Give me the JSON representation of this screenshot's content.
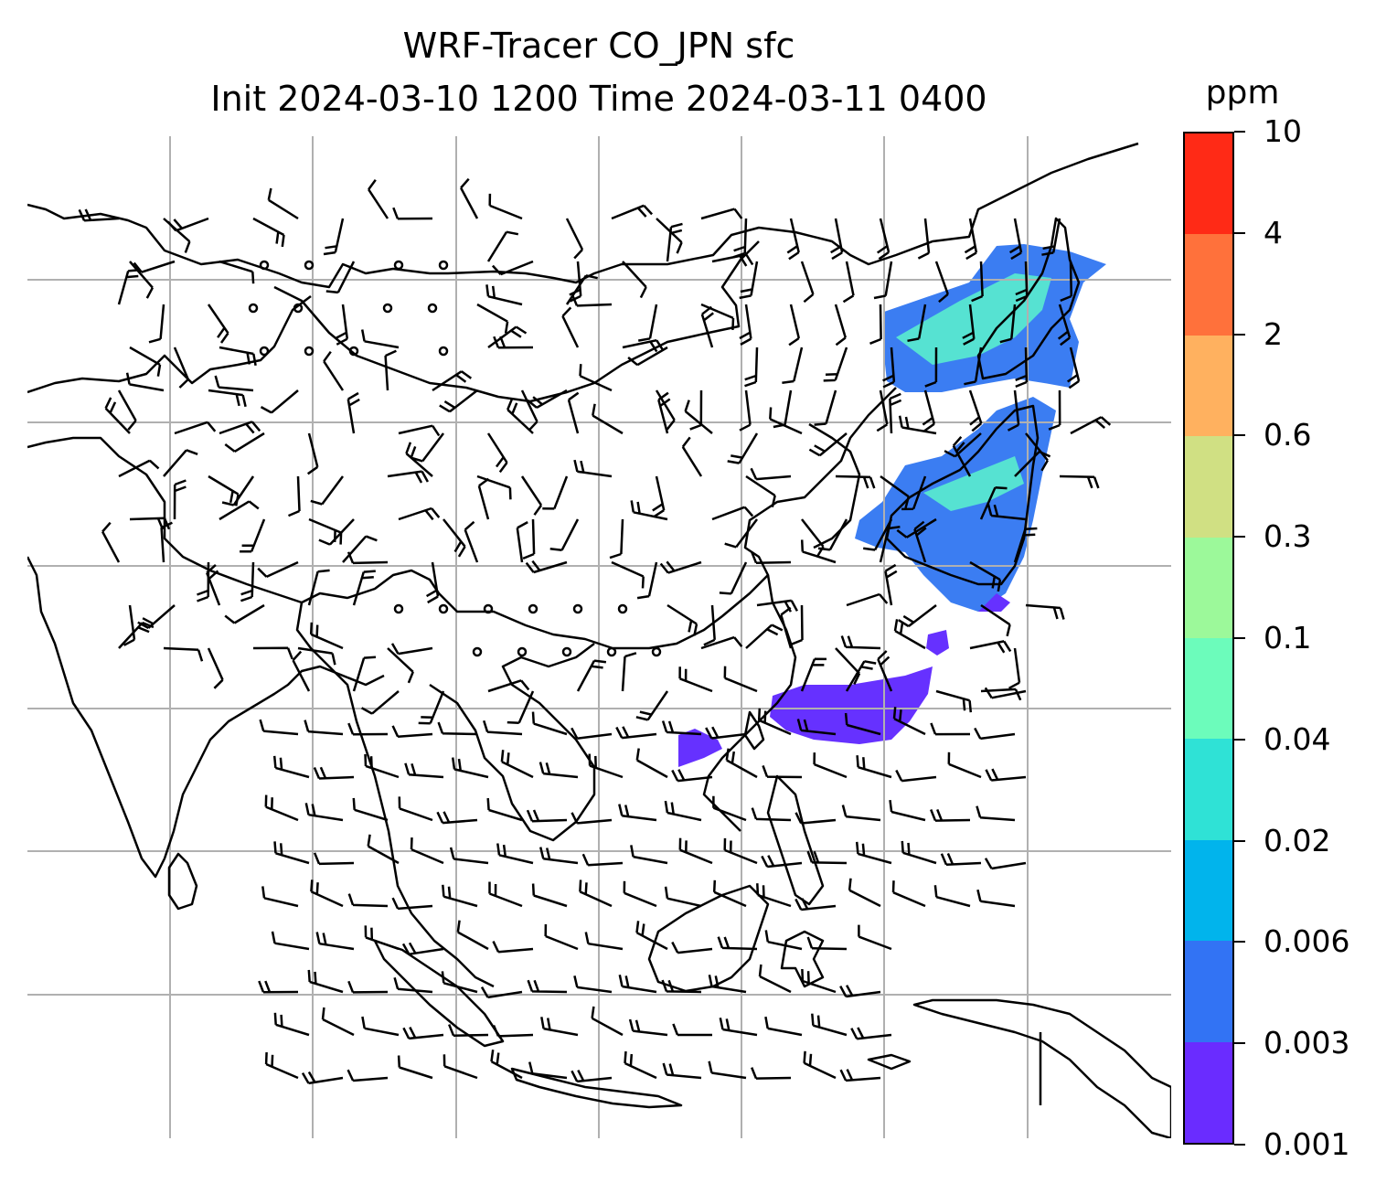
{
  "title": {
    "line1": "WRF-Tracer CO_JPN sfc",
    "line2": "Init 2024-03-10 1200 Time 2024-03-11 0400"
  },
  "colorbar": {
    "unit": "ppm",
    "levels": [
      "0.001",
      "0.003",
      "0.006",
      "0.02",
      "0.04",
      "0.1",
      "0.3",
      "0.6",
      "2",
      "4",
      "10"
    ],
    "colors": [
      "#6a2cff",
      "#3273f4",
      "#01b4ec",
      "#2fe2d6",
      "#6cfcbb",
      "#9cf99a",
      "#d0e083",
      "#ffb15f",
      "#ff713b",
      "#ff2a16"
    ]
  },
  "map": {
    "plume_colors": {
      "low": "#6631ff",
      "mid": "#3b7df2",
      "high": "#56e2d2",
      "peak": "#7ff8bd"
    },
    "coastline_color": "#000000",
    "grid_color": "#b0b0b0",
    "wind_barb_color": "#000000"
  }
}
